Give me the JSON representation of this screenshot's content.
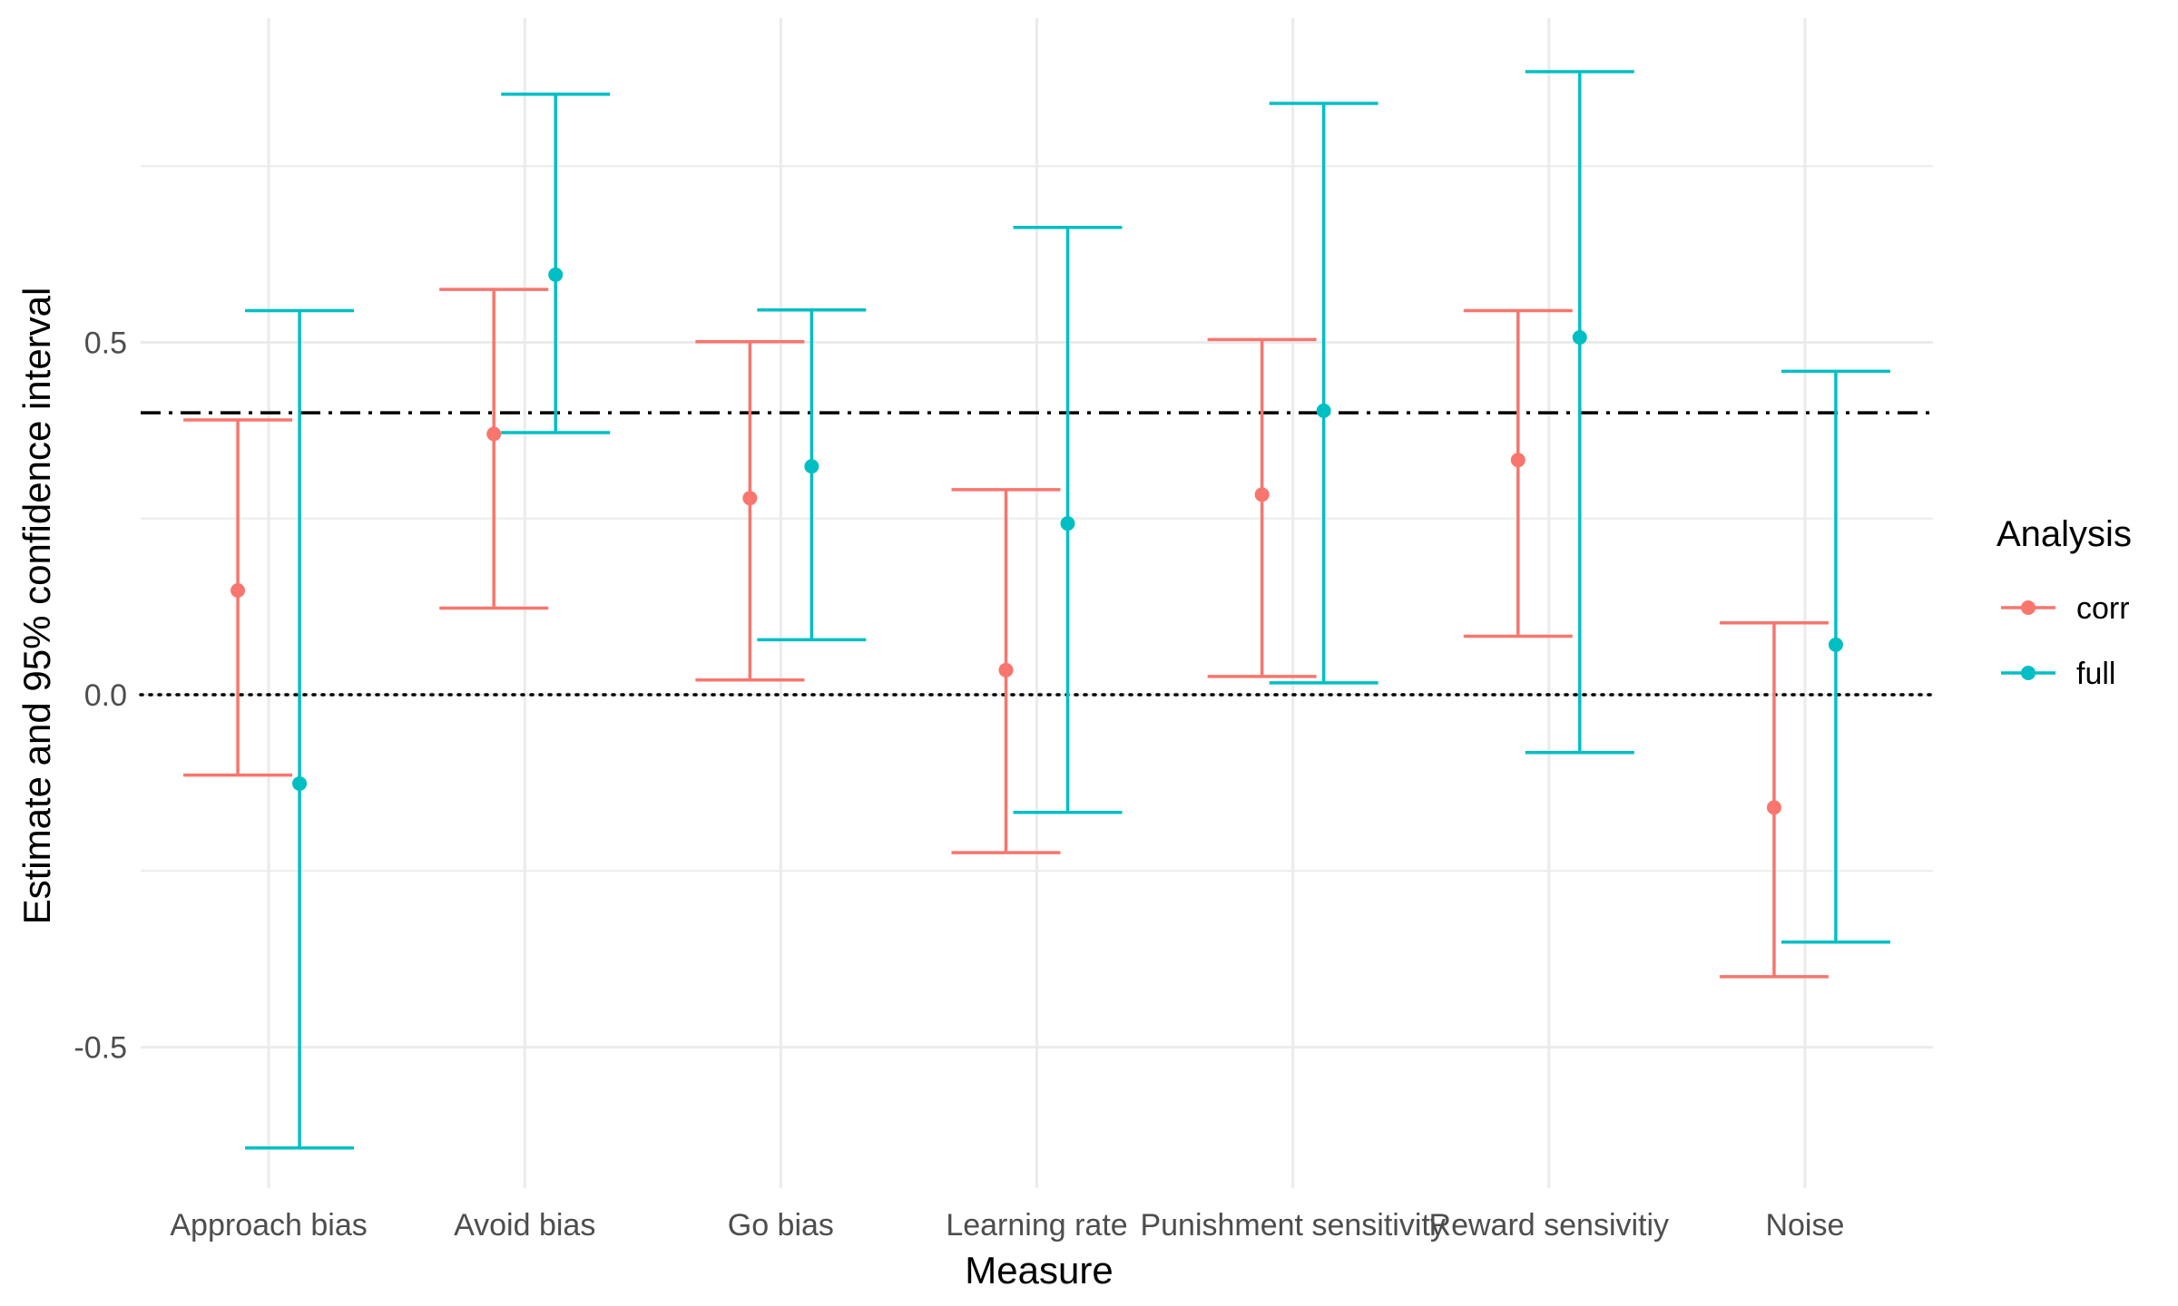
{
  "chart_data": {
    "type": "errorbar",
    "xlabel": "Measure",
    "ylabel": "Estimate and 95% confidence interval",
    "categories": [
      "Approach bias",
      "Avoid bias",
      "Go bias",
      "Learning rate",
      "Punishment sensitivity",
      "Reward sensivitiy",
      "Noise"
    ],
    "ylim": [
      -0.7,
      0.96
    ],
    "yticks": [
      -0.5,
      0.0,
      0.5
    ],
    "ytick_labels": [
      "-0.5",
      "0.0",
      "0.5"
    ],
    "grid": true,
    "reference_lines": [
      {
        "y": 0.0,
        "style": "dotted",
        "color": "#000000"
      },
      {
        "y": 0.4,
        "style": "dashdot",
        "color": "#000000"
      }
    ],
    "legend": {
      "title": "Analysis",
      "placement": "right"
    },
    "series": [
      {
        "name": "corr",
        "color": "#F8766D",
        "estimate": [
          0.148,
          0.37,
          0.279,
          0.035,
          0.284,
          0.333,
          -0.16
        ],
        "lower": [
          -0.114,
          0.123,
          0.021,
          -0.224,
          0.026,
          0.083,
          -0.4
        ],
        "upper": [
          0.39,
          0.575,
          0.501,
          0.291,
          0.504,
          0.545,
          0.102
        ]
      },
      {
        "name": "full",
        "color": "#00BFC4",
        "estimate": [
          -0.126,
          0.596,
          0.324,
          0.243,
          0.403,
          0.507,
          0.071
        ],
        "lower": [
          -0.643,
          0.372,
          0.078,
          -0.167,
          0.017,
          -0.082,
          -0.351
        ],
        "upper": [
          0.545,
          0.852,
          0.546,
          0.663,
          0.839,
          0.884,
          0.459
        ]
      }
    ]
  }
}
